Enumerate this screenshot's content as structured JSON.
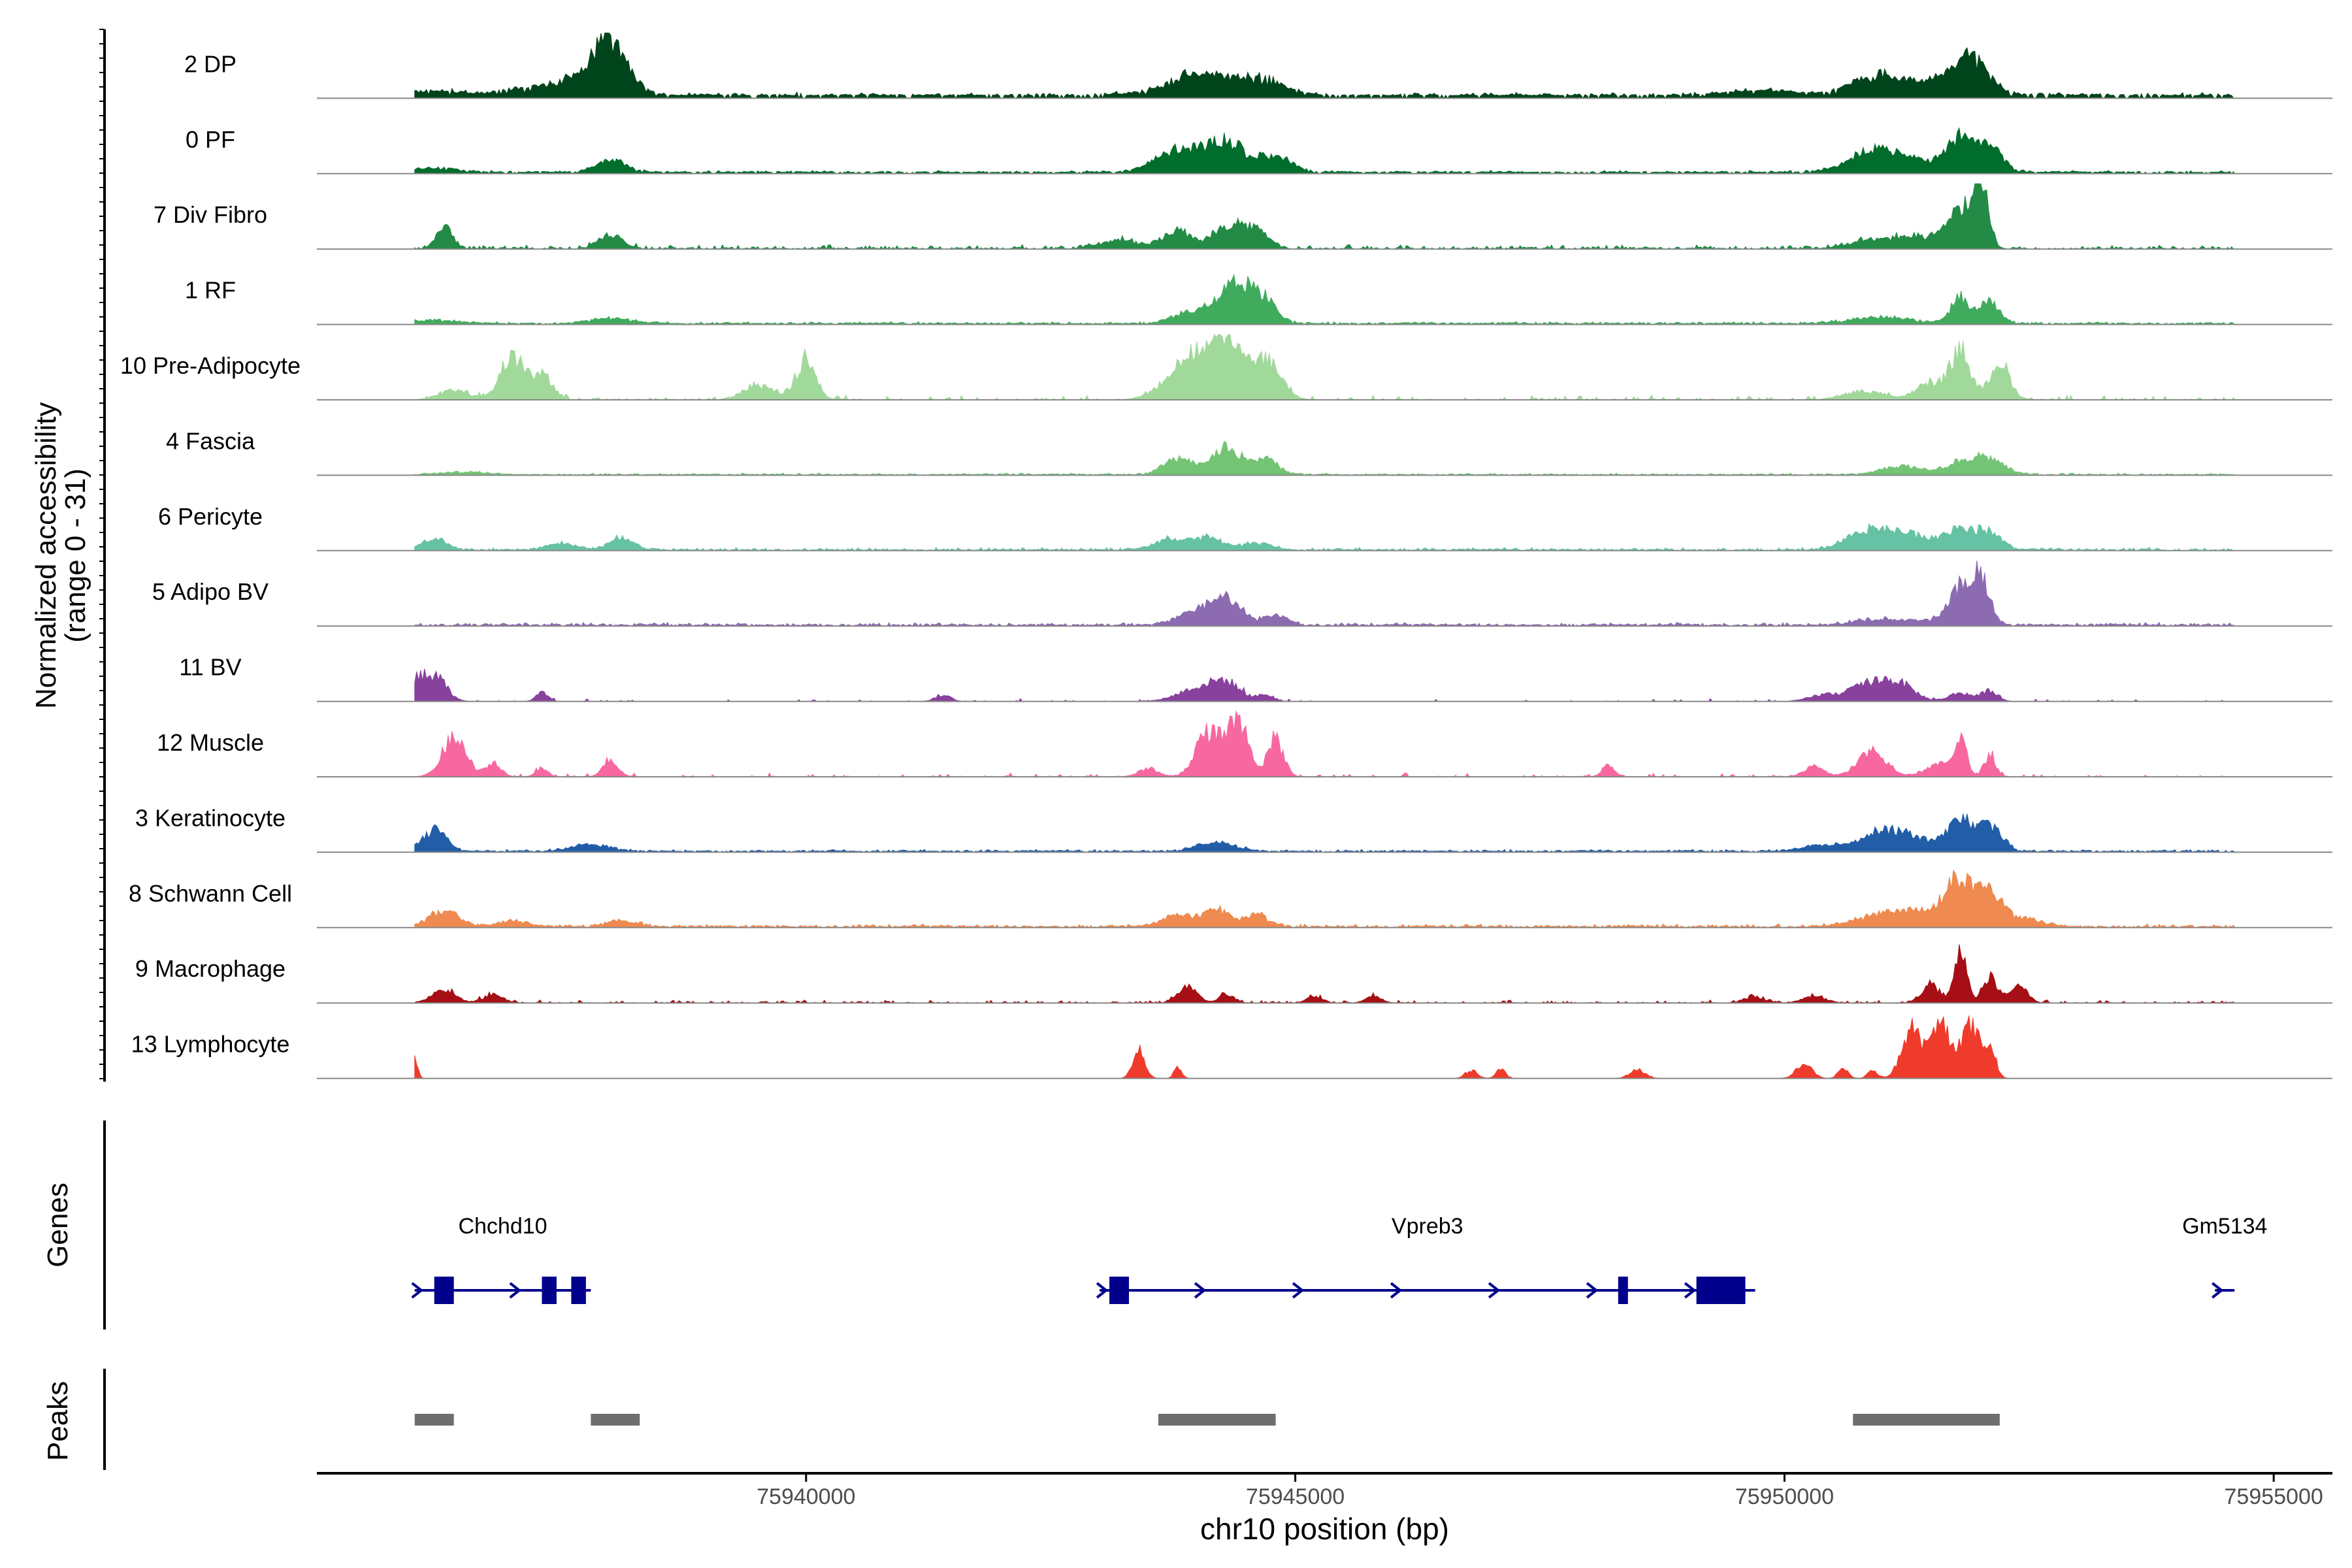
{
  "chart_data": {
    "type": "area",
    "title": "",
    "xlabel": "chr10 position (bp)",
    "ylabel_line1": "Normalized accessibility",
    "ylabel_line2": "(range 0 - 31)",
    "y_range": [
      0,
      31
    ],
    "xlim": [
      75935000,
      75955600
    ],
    "region": [
      75936000,
      75954600
    ],
    "x_ticks": [
      75940000,
      75945000,
      75950000,
      75955000
    ],
    "x_tick_labels": [
      "75940000",
      "75945000",
      "75950000",
      "75955000"
    ],
    "series": [
      {
        "name": "2 DP",
        "color": "#00441b",
        "baseline": 1.3,
        "noise_prob": 0.85,
        "noise_scale": 1.6,
        "peaks": [
          [
            75936200,
            250,
            2
          ],
          [
            75938000,
            180,
            24
          ],
          [
            75937700,
            250,
            6
          ],
          [
            75937200,
            300,
            3
          ],
          [
            75944000,
            220,
            6
          ],
          [
            75944600,
            250,
            8
          ],
          [
            75943900,
            350,
            4
          ],
          [
            75950900,
            220,
            8
          ],
          [
            75951800,
            150,
            11
          ],
          [
            75952000,
            150,
            10
          ],
          [
            75951400,
            300,
            6
          ],
          [
            75949800,
            400,
            2
          ]
        ]
      },
      {
        "name": "0 PF",
        "color": "#006d2c",
        "baseline": 0.6,
        "noise_prob": 0.85,
        "noise_scale": 1.0,
        "peaks": [
          [
            75936200,
            250,
            2
          ],
          [
            75938000,
            150,
            6
          ],
          [
            75943800,
            220,
            11
          ],
          [
            75944300,
            200,
            14
          ],
          [
            75944800,
            150,
            8
          ],
          [
            75950900,
            250,
            9
          ],
          [
            75951800,
            120,
            15
          ],
          [
            75952100,
            120,
            12
          ],
          [
            75951400,
            350,
            5
          ]
        ]
      },
      {
        "name": "7 Div Fibro",
        "color": "#238b45",
        "baseline": 0.3,
        "noise_prob": 0.55,
        "noise_scale": 2.0,
        "peaks": [
          [
            75936300,
            80,
            10
          ],
          [
            75938000,
            120,
            6
          ],
          [
            75943800,
            150,
            8
          ],
          [
            75944300,
            150,
            10
          ],
          [
            75944600,
            120,
            9
          ],
          [
            75951800,
            120,
            18
          ],
          [
            75952000,
            80,
            31
          ],
          [
            75950900,
            220,
            4
          ],
          [
            75951400,
            200,
            6
          ],
          [
            75943200,
            200,
            4
          ]
        ]
      },
      {
        "name": "1 RF",
        "color": "#41ab5d",
        "baseline": 0.4,
        "noise_prob": 0.85,
        "noise_scale": 1.0,
        "peaks": [
          [
            75936200,
            250,
            1.5
          ],
          [
            75938000,
            200,
            2.5
          ],
          [
            75944000,
            220,
            6
          ],
          [
            75944400,
            150,
            20
          ],
          [
            75944700,
            120,
            10
          ],
          [
            75951800,
            100,
            12
          ],
          [
            75952100,
            100,
            10
          ],
          [
            75951000,
            300,
            3
          ]
        ]
      },
      {
        "name": "10 Pre-Adipocyte",
        "color": "#a1d99b",
        "baseline": 0,
        "noise_prob": 0.35,
        "noise_scale": 2.5,
        "peaks": [
          [
            75937000,
            120,
            20
          ],
          [
            75937300,
            100,
            12
          ],
          [
            75936400,
            150,
            5
          ],
          [
            75940000,
            100,
            18
          ],
          [
            75939500,
            150,
            7
          ],
          [
            75943800,
            200,
            10
          ],
          [
            75944300,
            150,
            28
          ],
          [
            75944700,
            150,
            18
          ],
          [
            75944000,
            150,
            15
          ],
          [
            75951800,
            100,
            22
          ],
          [
            75952200,
            100,
            18
          ],
          [
            75951500,
            150,
            8
          ],
          [
            75950800,
            200,
            4
          ]
        ]
      },
      {
        "name": "4 Fascia",
        "color": "#74c476",
        "baseline": 0.3,
        "noise_prob": 0.8,
        "noise_scale": 0.8,
        "peaks": [
          [
            75943800,
            150,
            8
          ],
          [
            75944300,
            150,
            13
          ],
          [
            75944700,
            120,
            7
          ],
          [
            75951200,
            200,
            4
          ],
          [
            75951800,
            150,
            6
          ],
          [
            75952100,
            150,
            7
          ],
          [
            75936500,
            200,
            1.2
          ]
        ]
      },
      {
        "name": "6 Pericyte",
        "color": "#66c2a4",
        "baseline": 0.3,
        "noise_prob": 0.8,
        "noise_scale": 1.3,
        "peaks": [
          [
            75936200,
            120,
            5
          ],
          [
            75938100,
            120,
            6
          ],
          [
            75937500,
            150,
            3
          ],
          [
            75943700,
            150,
            5
          ],
          [
            75944100,
            150,
            6
          ],
          [
            75944600,
            150,
            3
          ],
          [
            75950800,
            200,
            7
          ],
          [
            75951200,
            250,
            8
          ],
          [
            75951800,
            150,
            10
          ],
          [
            75952100,
            120,
            8
          ]
        ]
      },
      {
        "name": "5 Adipo BV",
        "color": "#8c6bb1",
        "baseline": 0.4,
        "noise_prob": 0.8,
        "noise_scale": 1.4,
        "peaks": [
          [
            75944000,
            200,
            6
          ],
          [
            75944300,
            150,
            12
          ],
          [
            75944800,
            120,
            5
          ],
          [
            75951800,
            120,
            16
          ],
          [
            75952000,
            100,
            21
          ],
          [
            75950900,
            200,
            3
          ],
          [
            75951400,
            200,
            2
          ]
        ]
      },
      {
        "name": "11 BV",
        "color": "#88419d",
        "baseline": 0,
        "noise_prob": 0.15,
        "noise_scale": 1.5,
        "peaks": [
          [
            75936200,
            120,
            12
          ],
          [
            75936000,
            80,
            8
          ],
          [
            75937300,
            60,
            4
          ],
          [
            75941400,
            80,
            3
          ],
          [
            75944000,
            200,
            6
          ],
          [
            75944300,
            150,
            8
          ],
          [
            75944700,
            80,
            3
          ],
          [
            75950400,
            150,
            3
          ],
          [
            75950900,
            200,
            9
          ],
          [
            75951200,
            150,
            6
          ],
          [
            75951800,
            120,
            4
          ],
          [
            75952100,
            80,
            5
          ]
        ]
      },
      {
        "name": "12 Muscle",
        "color": "#f768a1",
        "baseline": 0,
        "noise_prob": 0.3,
        "noise_scale": 2.0,
        "peaks": [
          [
            75936400,
            120,
            18
          ],
          [
            75936800,
            80,
            6
          ],
          [
            75938000,
            80,
            7
          ],
          [
            75937300,
            60,
            4
          ],
          [
            75944100,
            120,
            20
          ],
          [
            75944400,
            120,
            27
          ],
          [
            75944800,
            80,
            17
          ],
          [
            75943500,
            100,
            4
          ],
          [
            75948200,
            60,
            5
          ],
          [
            75950300,
            100,
            5
          ],
          [
            75950900,
            150,
            12
          ],
          [
            75951600,
            150,
            6
          ],
          [
            75951800,
            60,
            16
          ],
          [
            75952100,
            60,
            10
          ]
        ]
      },
      {
        "name": "3 Keratinocyte",
        "color": "#225ea8",
        "baseline": 0.4,
        "noise_prob": 0.85,
        "noise_scale": 1.0,
        "peaks": [
          [
            75936200,
            120,
            10
          ],
          [
            75937800,
            200,
            3
          ],
          [
            75944200,
            200,
            4
          ],
          [
            75951000,
            220,
            9
          ],
          [
            75951800,
            120,
            14
          ],
          [
            75952100,
            120,
            12
          ],
          [
            75950400,
            200,
            3
          ],
          [
            75951400,
            200,
            5
          ]
        ]
      },
      {
        "name": "8 Schwann Cell",
        "color": "#ef8a50",
        "baseline": 0.4,
        "noise_prob": 0.8,
        "noise_scale": 1.5,
        "peaks": [
          [
            75936300,
            150,
            7
          ],
          [
            75937000,
            150,
            3
          ],
          [
            75938100,
            150,
            3
          ],
          [
            75943800,
            150,
            6
          ],
          [
            75944200,
            120,
            8
          ],
          [
            75944600,
            120,
            6
          ],
          [
            75951000,
            250,
            6
          ],
          [
            75951800,
            120,
            21
          ],
          [
            75952100,
            120,
            15
          ],
          [
            75951500,
            200,
            8
          ],
          [
            75952400,
            200,
            4
          ]
        ]
      },
      {
        "name": "9 Macrophage",
        "color": "#a50f15",
        "baseline": 0,
        "noise_prob": 0.5,
        "noise_scale": 1.5,
        "peaks": [
          [
            75936300,
            120,
            6
          ],
          [
            75936800,
            100,
            4
          ],
          [
            75943900,
            100,
            7
          ],
          [
            75944300,
            80,
            4
          ],
          [
            75945200,
            80,
            3
          ],
          [
            75945800,
            80,
            3
          ],
          [
            75949700,
            100,
            3
          ],
          [
            75950300,
            120,
            3
          ],
          [
            75951500,
            100,
            8
          ],
          [
            75951800,
            60,
            25
          ],
          [
            75952100,
            80,
            12
          ],
          [
            75952400,
            80,
            9
          ]
        ]
      },
      {
        "name": "13 Lymphocyte",
        "color": "#ef3b2c",
        "baseline": 0,
        "noise_prob": 0.0,
        "noise_scale": 0,
        "peaks": [
          [
            75936000,
            30,
            9
          ],
          [
            75943400,
            60,
            14
          ],
          [
            75943800,
            40,
            5
          ],
          [
            75946800,
            60,
            4
          ],
          [
            75947100,
            50,
            4
          ],
          [
            75948500,
            80,
            4
          ],
          [
            75950200,
            80,
            7
          ],
          [
            75950600,
            50,
            5
          ],
          [
            75950900,
            50,
            4
          ],
          [
            75951300,
            100,
            23
          ],
          [
            75951600,
            100,
            25
          ],
          [
            75951900,
            100,
            24
          ],
          [
            75952100,
            60,
            13
          ]
        ]
      }
    ],
    "genes_label": "Genes",
    "peaks_label": "Peaks",
    "genes": [
      {
        "name": "Chchd10",
        "start": 75936000,
        "end": 75937800,
        "exons": [
          [
            75936200,
            75936400
          ],
          [
            75937300,
            75937450
          ],
          [
            75937600,
            75937750
          ]
        ]
      },
      {
        "name": "Vpreb3",
        "start": 75943000,
        "end": 75949700,
        "exons": [
          [
            75943100,
            75943300
          ],
          [
            75948300,
            75948400
          ],
          [
            75949100,
            75949600
          ]
        ]
      },
      {
        "name": "Gm5134",
        "start": 75954400,
        "end": 75954600,
        "exons": []
      }
    ],
    "peak_regions": [
      [
        75936000,
        75936400
      ],
      [
        75937800,
        75938300
      ],
      [
        75943600,
        75944800
      ],
      [
        75950700,
        75952200
      ]
    ]
  }
}
